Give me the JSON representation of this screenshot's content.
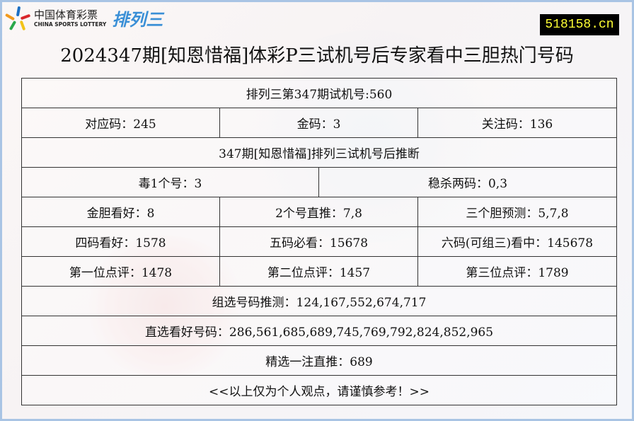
{
  "header": {
    "logo_cn": "中国体育彩票",
    "logo_en": "CHINA SPORTS LOTTERY",
    "logo_game": "排列三",
    "site": "518158.cn",
    "title": "2024347期[知恩惜福]体彩P三试机号后专家看中三胆热门号码"
  },
  "table": {
    "trial": "排列三第347期试机号:560",
    "row2": [
      "对应码：245",
      "金码：3",
      "关注码：136"
    ],
    "section": "347期[知恩惜福]排列三试机号后推断",
    "row4": [
      "毒1个号：3",
      "稳杀两码：0,3"
    ],
    "row5": [
      "金胆看好：8",
      "2个号直推：7,8",
      "三个胆预测：5,7,8"
    ],
    "row6": [
      "四码看好：1578",
      "五码必看：15678",
      "六码(可组三)看中：145678"
    ],
    "row7": [
      "第一位点评：1478",
      "第二位点评：1457",
      "第三位点评：1789"
    ],
    "group": "组选号码推测：124,167,552,674,717",
    "direct": "直选看好号码：286,561,685,689,745,769,792,824,852,965",
    "pick": "精选一注直推：689",
    "note": "<<以上仅为个人观点，请谨慎参考！>>"
  }
}
